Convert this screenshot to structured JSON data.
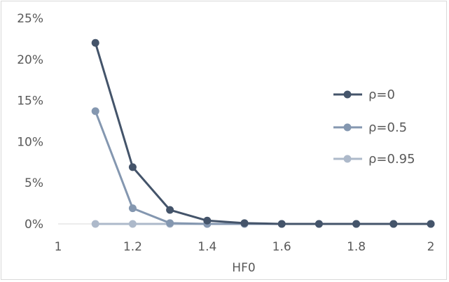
{
  "chart_data": {
    "type": "line",
    "title": "",
    "xlabel": "HF0",
    "ylabel": "",
    "x": [
      1.1,
      1.2,
      1.3,
      1.4,
      1.5,
      1.6,
      1.7,
      1.8,
      1.9,
      2.0
    ],
    "xlim": [
      1,
      2
    ],
    "ylim": [
      0,
      0.25
    ],
    "xticks": [
      "1",
      "1.2",
      "1.4",
      "1.6",
      "1.8",
      "2"
    ],
    "yticks": [
      "0%",
      "5%",
      "10%",
      "15%",
      "20%",
      "25%"
    ],
    "grid": false,
    "legend_position": "right",
    "series": [
      {
        "name": "ρ=0",
        "color": "#44546a",
        "values": [
          0.22,
          0.069,
          0.017,
          0.004,
          0.001,
          0.0,
          0.0,
          0.0,
          0.0,
          0.0
        ]
      },
      {
        "name": "ρ=0.5",
        "color": "#8497b0",
        "values": [
          0.137,
          0.019,
          0.001,
          0.0,
          0.0,
          0.0,
          0.0,
          0.0,
          0.0,
          0.0
        ]
      },
      {
        "name": "ρ=0.95",
        "color": "#adb9ca",
        "values": [
          0.0,
          0.0,
          0.0,
          0.0,
          0.0,
          0.0,
          0.0,
          0.0,
          0.0,
          0.0
        ]
      }
    ]
  }
}
